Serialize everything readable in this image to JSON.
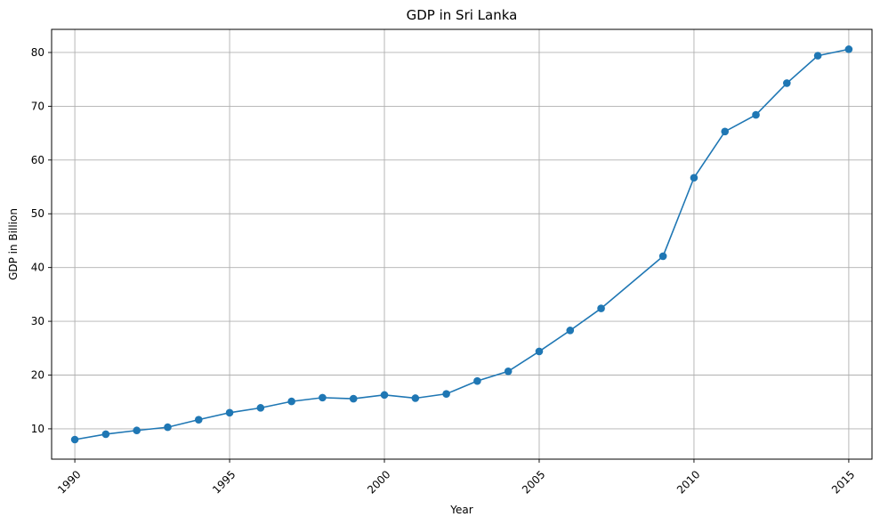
{
  "chart_data": {
    "type": "line",
    "title": "GDP in Sri Lanka",
    "xlabel": "Year",
    "ylabel": "GDP in Billion",
    "xlim": [
      1989.25,
      2015.75
    ],
    "ylim": [
      4.36,
      84.3
    ],
    "xticks": [
      1990,
      1995,
      2000,
      2005,
      2010,
      2015
    ],
    "yticks": [
      10,
      20,
      30,
      40,
      50,
      60,
      70,
      80
    ],
    "grid": true,
    "marker": "circle",
    "color": "#1f77b4",
    "series": [
      {
        "x": [
          1990,
          1991,
          1992,
          1993,
          1994,
          1995,
          1996,
          1997,
          1998,
          1999,
          2000,
          2001,
          2002,
          2003,
          2004,
          2005,
          2006,
          2007,
          2009,
          2010,
          2011,
          2012,
          2013,
          2014,
          2015
        ],
        "values": [
          8.0,
          9.0,
          9.7,
          10.3,
          11.7,
          13.0,
          13.9,
          15.1,
          15.8,
          15.6,
          16.3,
          15.7,
          16.5,
          18.9,
          20.7,
          24.4,
          28.3,
          32.4,
          42.1,
          56.7,
          65.3,
          68.4,
          74.3,
          79.4,
          80.6
        ]
      }
    ]
  }
}
